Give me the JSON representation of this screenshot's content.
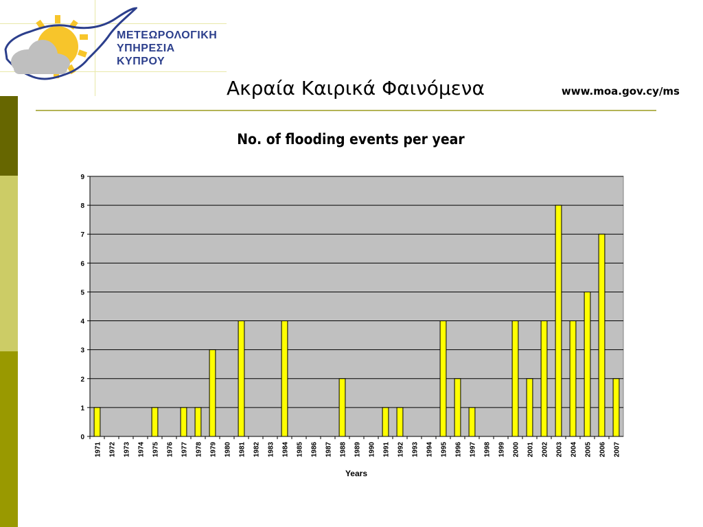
{
  "header": {
    "org_line1": "ΜΕΤΕΩΡΟΛΟΓΙΚΗ",
    "org_line2": "ΥΠΗΡΕΣΙΑ",
    "org_line3": "ΚΥΠΡΟΥ",
    "slide_title": "Ακραία Καιρικά Φαινόμενα",
    "url": "www.moa.gov.cy/ms"
  },
  "colors": {
    "bar_fill": "#ffff00",
    "plot_bg": "#c0c0c0",
    "accent_dark": "#666600",
    "accent_light": "#cccc66",
    "accent_mid": "#999900",
    "logo_blue": "#2c3f8c"
  },
  "chart_data": {
    "type": "bar",
    "title": "No. of flooding events per year",
    "xlabel": "Years",
    "ylabel": "",
    "ylim": [
      0,
      9
    ],
    "yticks": [
      0,
      1,
      2,
      3,
      4,
      5,
      6,
      7,
      8,
      9
    ],
    "grid": true,
    "categories": [
      "1971",
      "1972",
      "1973",
      "1974",
      "1975",
      "1976",
      "1977",
      "1978",
      "1979",
      "1980",
      "1981",
      "1982",
      "1983",
      "1984",
      "1985",
      "1986",
      "1987",
      "1988",
      "1989",
      "1990",
      "1991",
      "1992",
      "1993",
      "1994",
      "1995",
      "1996",
      "1997",
      "1998",
      "1999",
      "2000",
      "2001",
      "2002",
      "2003",
      "2004",
      "2005",
      "2006",
      "2007"
    ],
    "values": [
      1,
      0,
      0,
      0,
      1,
      0,
      1,
      1,
      3,
      0,
      4,
      0,
      0,
      4,
      0,
      0,
      0,
      2,
      0,
      0,
      1,
      1,
      0,
      0,
      4,
      2,
      1,
      0,
      0,
      4,
      2,
      4,
      8,
      4,
      5,
      7,
      2
    ]
  }
}
